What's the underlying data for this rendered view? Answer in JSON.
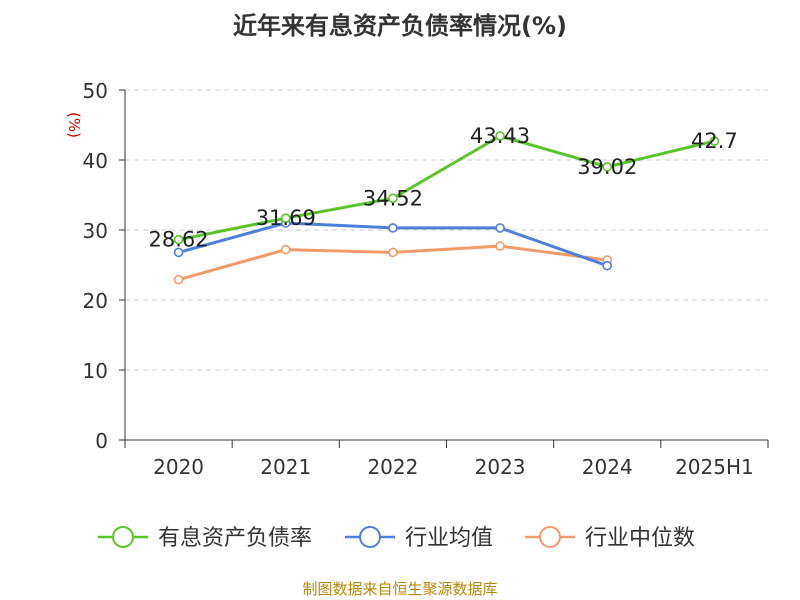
{
  "chart_data": {
    "type": "line",
    "title": "近年来有息资产负债率情况(%)",
    "ylabel": "(%)",
    "xlabel": "",
    "categories": [
      "2020",
      "2021",
      "2022",
      "2023",
      "2024",
      "2025H1"
    ],
    "ylim": [
      0,
      50
    ],
    "yticks": [
      "0",
      "10",
      "20",
      "30",
      "40",
      "50"
    ],
    "grid": true,
    "legend_position": "bottom",
    "series": [
      {
        "name": "有息资产负债率",
        "color": "#5bc42a",
        "values": [
          28.62,
          31.69,
          34.52,
          43.43,
          39.02,
          42.7
        ],
        "labels": [
          "28.62",
          "31.69",
          "34.52",
          "43.43",
          "39.02",
          "42.7"
        ]
      },
      {
        "name": "行业均值",
        "color": "#4f7fdc",
        "values": [
          26.8,
          31.0,
          30.3,
          30.3,
          24.9,
          null
        ],
        "labels": null
      },
      {
        "name": "行业中位数",
        "color": "#f39a6b",
        "values": [
          22.9,
          27.2,
          26.8,
          27.7,
          25.7,
          null
        ],
        "labels": null
      }
    ]
  },
  "source_note": "制图数据来自恒生聚源数据库",
  "colors": {
    "axis": "#333333",
    "grid": "#cccccc",
    "ylabel": "#cc0000",
    "source": "#b8860b"
  }
}
